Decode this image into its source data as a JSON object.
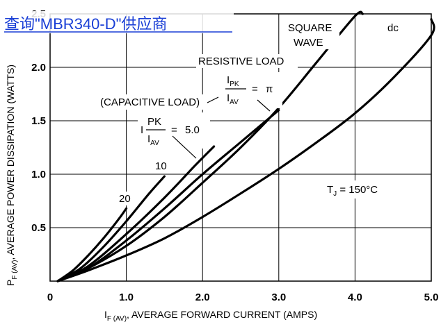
{
  "link": {
    "text": "查询\"MBR340-D\"供应商"
  },
  "chart_data": {
    "type": "line",
    "title": "",
    "xlabel": {
      "main": "I",
      "sub": "F (AV)",
      "rest": ", AVERAGE FORWARD CURRENT (AMPS)"
    },
    "ylabel": {
      "main": "P",
      "sub": "F (AV)",
      "rest": ", AVERAGE POWER DISSIPATION (WATTS)"
    },
    "xlim": [
      0,
      5.0
    ],
    "ylim": [
      0,
      2.5
    ],
    "grid": true,
    "x_ticks": [
      "0",
      "1.0",
      "2.0",
      "3.0",
      "4.0",
      "5.0"
    ],
    "y_ticks": [
      "0.5",
      "1.0",
      "1.5",
      "2.0",
      "2.5"
    ],
    "series": [
      {
        "name": "20",
        "points": [
          [
            0.1,
            0
          ],
          [
            0.3,
            0.1
          ],
          [
            0.5,
            0.24
          ],
          [
            0.7,
            0.4
          ],
          [
            0.9,
            0.58
          ],
          [
            1.0,
            0.68
          ]
        ]
      },
      {
        "name": "10",
        "points": [
          [
            0.1,
            0
          ],
          [
            0.4,
            0.12
          ],
          [
            0.7,
            0.32
          ],
          [
            1.0,
            0.56
          ],
          [
            1.3,
            0.82
          ],
          [
            1.5,
            0.98
          ]
        ]
      },
      {
        "name": "5.0",
        "points": [
          [
            0.1,
            0
          ],
          [
            0.5,
            0.14
          ],
          [
            1.0,
            0.44
          ],
          [
            1.5,
            0.78
          ],
          [
            1.9,
            1.08
          ],
          [
            2.15,
            1.26
          ]
        ]
      },
      {
        "name": "π",
        "points": [
          [
            0.1,
            0
          ],
          [
            0.5,
            0.12
          ],
          [
            1.0,
            0.38
          ],
          [
            1.5,
            0.68
          ],
          [
            2.0,
            1.0
          ],
          [
            2.5,
            1.3
          ],
          [
            3.0,
            1.6
          ]
        ]
      },
      {
        "name": "SQUARE WAVE",
        "points": [
          [
            0.1,
            0
          ],
          [
            0.5,
            0.12
          ],
          [
            1.0,
            0.33
          ],
          [
            1.5,
            0.6
          ],
          [
            2.0,
            0.92
          ],
          [
            2.5,
            1.25
          ],
          [
            3.0,
            1.62
          ],
          [
            3.5,
            2.05
          ],
          [
            4.0,
            2.48
          ],
          [
            4.1,
            2.55
          ]
        ]
      },
      {
        "name": "dc",
        "points": [
          [
            0.1,
            0
          ],
          [
            0.5,
            0.1
          ],
          [
            1.0,
            0.24
          ],
          [
            1.5,
            0.4
          ],
          [
            2.0,
            0.6
          ],
          [
            2.5,
            0.82
          ],
          [
            3.0,
            1.05
          ],
          [
            3.5,
            1.3
          ],
          [
            4.0,
            1.57
          ],
          [
            4.5,
            1.9
          ],
          [
            5.0,
            2.3
          ],
          [
            5.15,
            2.45
          ]
        ]
      }
    ],
    "annotations": {
      "square": "SQUARE",
      "wave": "WAVE",
      "dc": "dc",
      "resistive": "RESISTIVE LOAD",
      "capacitive": "(CAPACITIVE LOAD)",
      "ratio_pi": {
        "num_main": "I",
        "num_sub": "PK",
        "den_main": "I",
        "den_sub": "AV",
        "eq": "=",
        "val": "π"
      },
      "ratio_5": {
        "prefix": "I",
        "num": "PK",
        "den_main": "I",
        "den_sub": "AV",
        "eq": "=",
        "val": "5.0"
      },
      "label_10": "10",
      "label_20": "20",
      "tj": {
        "main": "T",
        "sub": "J",
        "rest": " = 150°C"
      }
    }
  }
}
